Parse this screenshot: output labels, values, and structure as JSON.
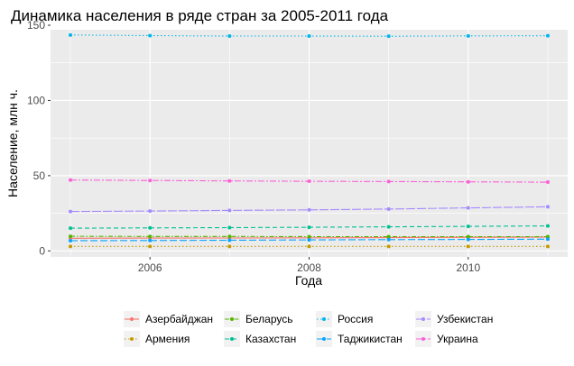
{
  "chart_data": {
    "type": "line",
    "title": "Динамика населения в ряде стран за 2005-2011 года",
    "xlabel": "Года",
    "ylabel": "Население, млн ч.",
    "xlim": [
      2004.75,
      2011.25
    ],
    "ylim": [
      -4,
      147
    ],
    "x_ticks": [
      2006,
      2008,
      2010
    ],
    "y_ticks": [
      0,
      50,
      100,
      150
    ],
    "grid": true,
    "legend_position": "bottom",
    "x": [
      2005,
      2006,
      2007,
      2008,
      2009,
      2010,
      2011
    ],
    "series": [
      {
        "name": "Азербайджан",
        "color": "#F8766D",
        "dash": "solid",
        "values": [
          8.4,
          8.5,
          8.6,
          8.7,
          8.8,
          9.0,
          9.1
        ]
      },
      {
        "name": "Армения",
        "color": "#C49A00",
        "dash": "dotted",
        "values": [
          3.0,
          3.0,
          3.0,
          3.0,
          3.0,
          3.0,
          3.0
        ]
      },
      {
        "name": "Беларусь",
        "color": "#53B400",
        "dash": "dashed-dot",
        "values": [
          9.7,
          9.6,
          9.6,
          9.5,
          9.5,
          9.5,
          9.5
        ]
      },
      {
        "name": "Казахстан",
        "color": "#00C094",
        "dash": "dashed",
        "values": [
          15.1,
          15.3,
          15.5,
          15.7,
          16.0,
          16.3,
          16.6
        ]
      },
      {
        "name": "Россия",
        "color": "#00B6EB",
        "dash": "dotted",
        "values": [
          143.5,
          143.1,
          142.8,
          142.8,
          142.7,
          142.9,
          143.0
        ]
      },
      {
        "name": "Таджикистан",
        "color": "#06A4FF",
        "dash": "long-dash",
        "values": [
          6.8,
          6.9,
          7.1,
          7.3,
          7.5,
          7.6,
          7.8
        ]
      },
      {
        "name": "Узбекистан",
        "color": "#A58AFF",
        "dash": "long-dash-2",
        "values": [
          26.2,
          26.5,
          26.9,
          27.3,
          27.8,
          28.6,
          29.3
        ]
      },
      {
        "name": "Украина",
        "color": "#FB61D7",
        "dash": "dash-dot-2",
        "values": [
          47.1,
          46.8,
          46.5,
          46.3,
          46.1,
          45.9,
          45.7
        ]
      }
    ]
  }
}
